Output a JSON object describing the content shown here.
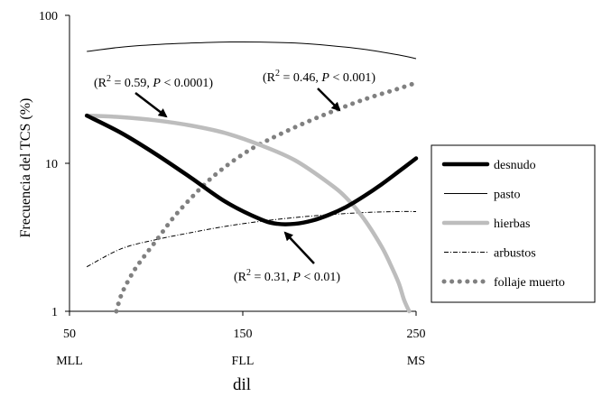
{
  "chart_data": {
    "type": "line",
    "ylabel": "Frecuencia del TCS (%)",
    "xlabel": "dil",
    "y_scale": "log",
    "ylim": [
      1,
      100
    ],
    "xlim": [
      50,
      250
    ],
    "y_ticks": [
      {
        "value": 1,
        "label": "1"
      },
      {
        "value": 10,
        "label": "10"
      },
      {
        "value": 100,
        "label": "100"
      }
    ],
    "x_ticks": [
      {
        "value": 50,
        "label": "50",
        "sublabel": "MLL"
      },
      {
        "value": 150,
        "label": "150",
        "sublabel": "FLL"
      },
      {
        "value": 250,
        "label": "250",
        "sublabel": "MS"
      }
    ],
    "legend_position": "right",
    "grid": false,
    "series": [
      {
        "name": "desnudo",
        "color": "#000000",
        "style": "thick-solid",
        "x": [
          60,
          80,
          100,
          120,
          140,
          160,
          170,
          180,
          190,
          200,
          210,
          220,
          230,
          240,
          250
        ],
        "y": [
          21,
          16,
          11.5,
          8,
          5.5,
          4.2,
          3.9,
          3.9,
          4.1,
          4.5,
          5.1,
          6,
          7.2,
          8.8,
          10.8
        ]
      },
      {
        "name": "pasto",
        "color": "#000000",
        "style": "thin-solid",
        "x": [
          60,
          80,
          100,
          120,
          140,
          160,
          180,
          200,
          220,
          240,
          250
        ],
        "y": [
          57,
          61,
          63.5,
          65,
          66,
          66,
          65,
          62.5,
          59,
          54,
          51
        ]
      },
      {
        "name": "hierbas",
        "color": "#bdbdbd",
        "style": "thick-solid",
        "x": [
          60,
          80,
          100,
          120,
          140,
          160,
          180,
          200,
          210,
          220,
          230,
          235,
          240,
          243,
          246
        ],
        "y": [
          21,
          20.5,
          19.5,
          18,
          16,
          13.3,
          10.5,
          7.3,
          5.8,
          4.2,
          2.75,
          2.1,
          1.55,
          1.2,
          1
        ]
      },
      {
        "name": "arbustos",
        "color": "#000000",
        "style": "dash-dot",
        "x": [
          60,
          80,
          100,
          120,
          140,
          160,
          180,
          200,
          220,
          240,
          250
        ],
        "y": [
          2,
          2.65,
          3.05,
          3.4,
          3.75,
          4.05,
          4.3,
          4.5,
          4.65,
          4.72,
          4.72
        ]
      },
      {
        "name": "follaje muerto",
        "color": "#808080",
        "style": "dotted",
        "x": [
          77,
          80,
          85,
          90,
          100,
          110,
          120,
          130,
          140,
          150,
          160,
          180,
          200,
          220,
          240,
          250
        ],
        "y": [
          1,
          1.3,
          1.7,
          2.1,
          3,
          4.3,
          5.8,
          7.6,
          9.5,
          11.5,
          13.5,
          17.5,
          22,
          27,
          32,
          35
        ]
      }
    ],
    "annotations": [
      {
        "r2": "0.59",
        "p_text": "< 0.0001"
      },
      {
        "r2": "0.46",
        "p_text": "< 0.001"
      },
      {
        "r2": "0.31",
        "p_text": "< 0.01"
      }
    ]
  }
}
